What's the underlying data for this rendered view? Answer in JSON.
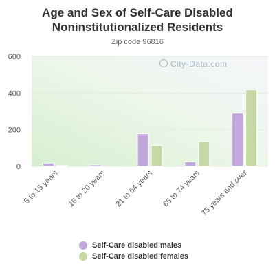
{
  "title_line1": "Age and Sex of Self-Care Disabled",
  "title_line2": "Noninstitutionalized Residents",
  "subtitle": "Zip code 96816",
  "watermark": "City-Data.com",
  "colors": {
    "males": "#c2a8dc",
    "females": "#c5d8a6"
  },
  "chart_data": {
    "type": "bar",
    "title": "Age and Sex of Self-Care Disabled Noninstitutionalized Residents",
    "subtitle": "Zip code 96816",
    "categories": [
      "5 to 15 years",
      "16 to 20 years",
      "21 to 64 years",
      "65 to 74 years",
      "75 years and over"
    ],
    "series": [
      {
        "name": "Self-Care disabled males",
        "values": [
          18,
          8,
          178,
          25,
          290
        ]
      },
      {
        "name": "Self-Care disabled females",
        "values": [
          3,
          0,
          113,
          135,
          418
        ]
      }
    ],
    "yticks": [
      0,
      200,
      400,
      600
    ],
    "ylim": [
      0,
      600
    ],
    "grid": true,
    "legend_position": "bottom"
  }
}
